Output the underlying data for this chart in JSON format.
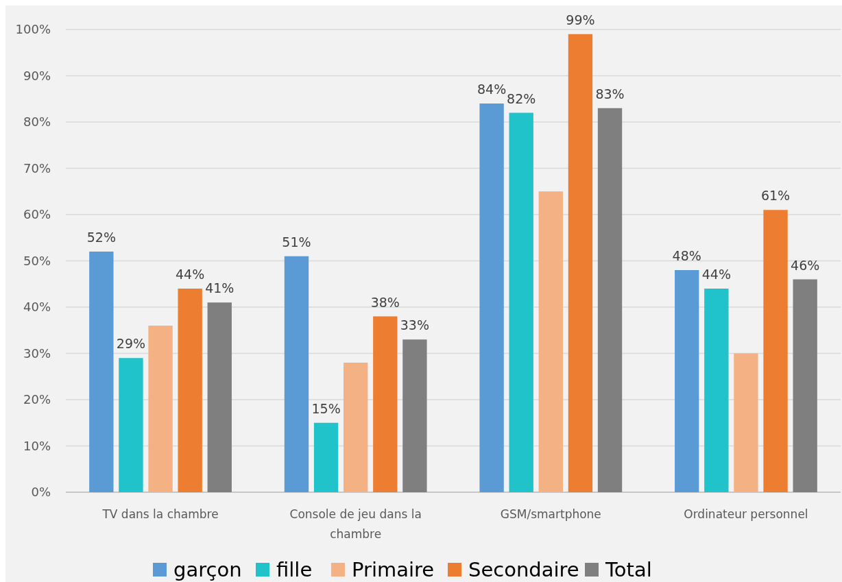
{
  "chart_data": {
    "type": "bar",
    "categories": [
      "TV dans la chambre",
      "Console de jeu dans la chambre",
      "GSM/smartphone",
      "Ordinateur personnel"
    ],
    "series": [
      {
        "name": "garçon",
        "color": "#5b9bd5",
        "values": [
          52,
          51,
          84,
          48
        ],
        "value_labels": [
          "52%",
          "51%",
          "84%",
          "48%"
        ]
      },
      {
        "name": "fille",
        "color": "#21c3cb",
        "values": [
          29,
          15,
          82,
          44
        ],
        "value_labels": [
          "29%",
          "15%",
          "82%",
          "44%"
        ]
      },
      {
        "name": "Primaire",
        "color": "#f4b183",
        "values": [
          36,
          28,
          65,
          30
        ],
        "value_labels": [
          null,
          null,
          null,
          null
        ]
      },
      {
        "name": "Secondaire",
        "color": "#ed7d31",
        "values": [
          44,
          38,
          99,
          61
        ],
        "value_labels": [
          "44%",
          "38%",
          "99%",
          "61%"
        ]
      },
      {
        "name": "Total",
        "color": "#7f7f7f",
        "values": [
          41,
          33,
          83,
          46
        ],
        "value_labels": [
          "41%",
          "33%",
          "83%",
          "46%"
        ]
      }
    ],
    "ylim": [
      0,
      100
    ],
    "yticks": [
      {
        "value": 0,
        "label": "0%"
      },
      {
        "value": 10,
        "label": "10%"
      },
      {
        "value": 20,
        "label": "20%"
      },
      {
        "value": 30,
        "label": "30%"
      },
      {
        "value": 40,
        "label": "40%"
      },
      {
        "value": 50,
        "label": "50%"
      },
      {
        "value": 60,
        "label": "60%"
      },
      {
        "value": 70,
        "label": "70%"
      },
      {
        "value": 80,
        "label": "80%"
      },
      {
        "value": 90,
        "label": "90%"
      },
      {
        "value": 100,
        "label": "100%"
      }
    ],
    "grid": "y",
    "legend": "bottom"
  }
}
